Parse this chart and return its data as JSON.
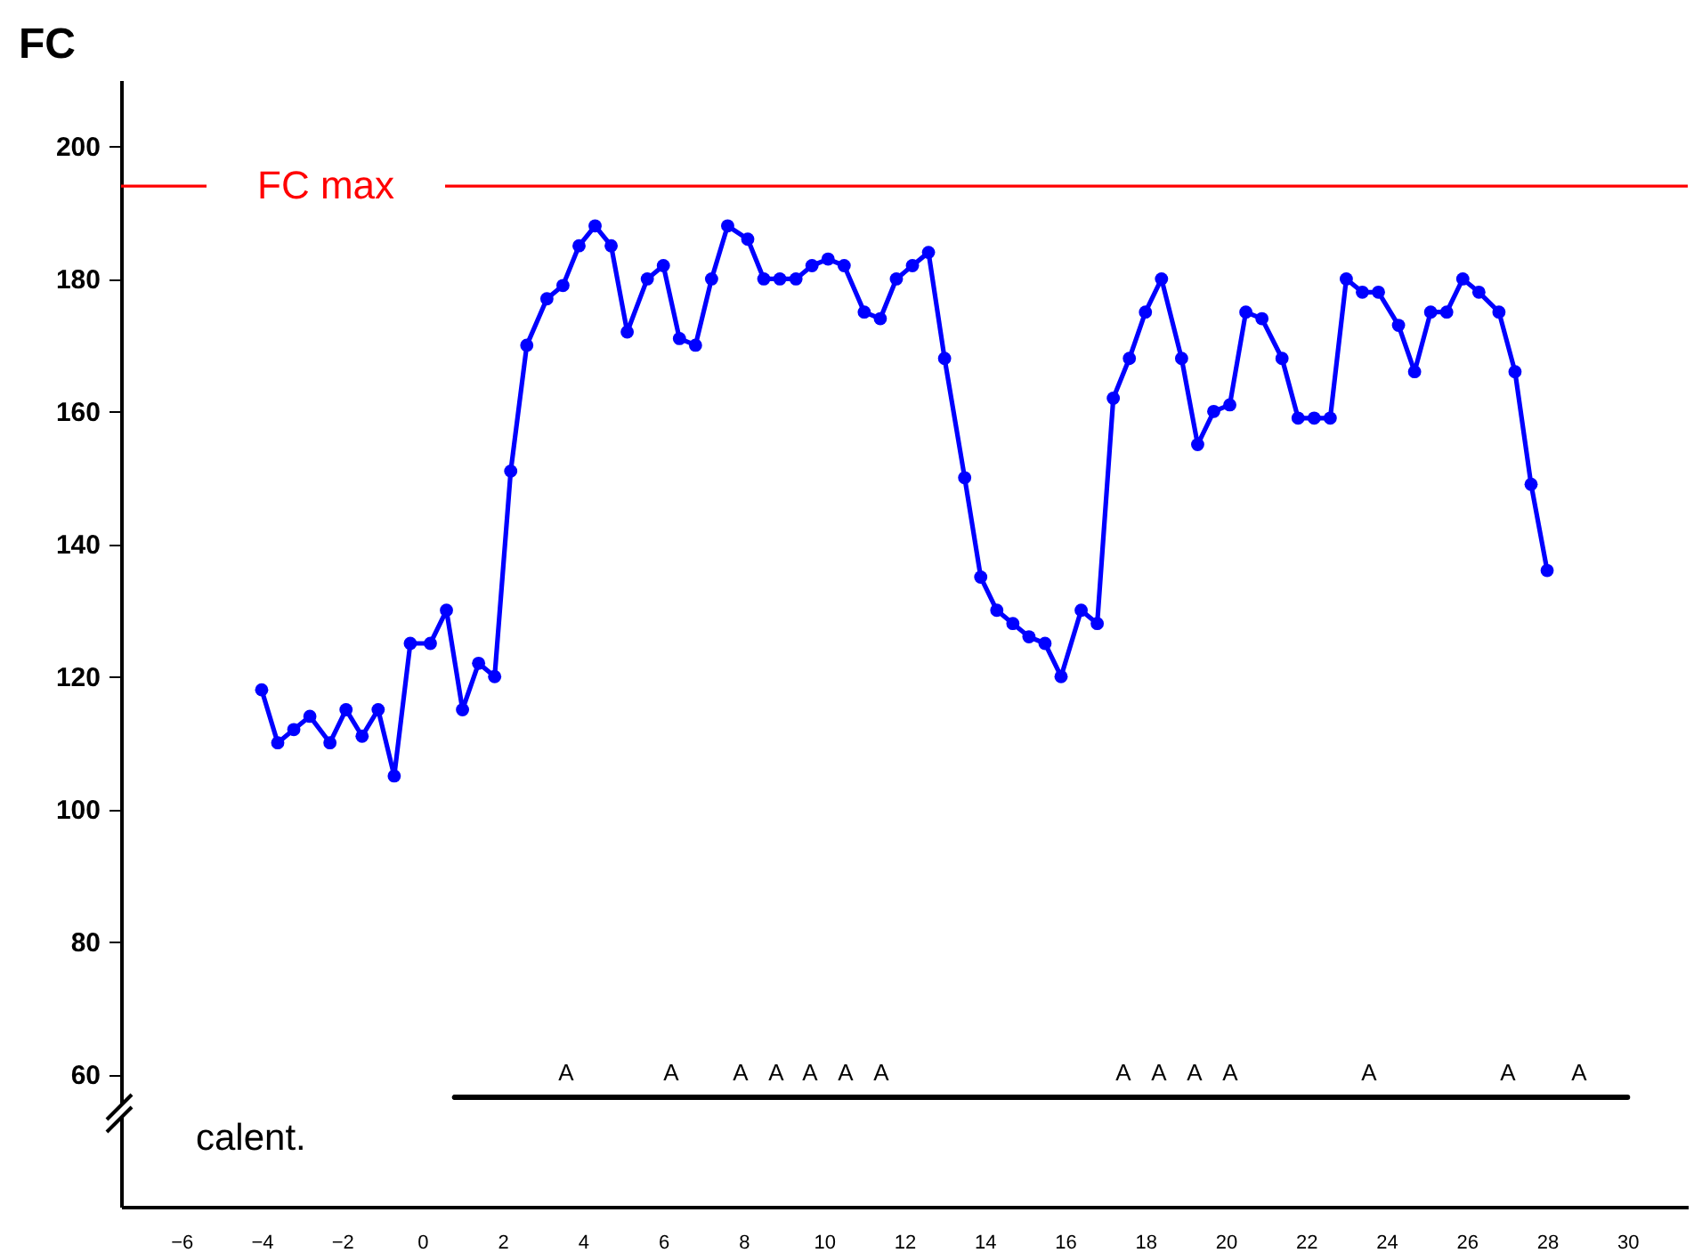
{
  "chart_data": {
    "type": "line",
    "ylabel": "FC",
    "x": [
      -4.0,
      -3.6,
      -3.2,
      -2.8,
      -2.3,
      -1.9,
      -1.5,
      -1.1,
      -0.7,
      -0.3,
      0.2,
      0.6,
      1.0,
      1.4,
      1.8,
      2.2,
      2.6,
      3.1,
      3.5,
      3.9,
      4.3,
      4.7,
      5.1,
      5.6,
      6.0,
      6.4,
      6.8,
      7.2,
      7.6,
      8.1,
      8.5,
      8.9,
      9.3,
      9.7,
      10.1,
      10.5,
      11.0,
      11.4,
      11.8,
      12.2,
      12.6,
      13.0,
      13.5,
      13.9,
      14.3,
      14.7,
      15.1,
      15.5,
      15.9,
      16.4,
      16.8,
      17.2,
      17.6,
      18.0,
      18.4,
      18.9,
      19.3,
      19.7,
      20.1,
      20.5,
      20.9,
      21.4,
      21.8,
      22.2,
      22.6,
      23.0,
      23.4,
      23.8,
      24.3,
      24.7,
      25.1,
      25.5,
      25.9,
      26.3,
      26.8,
      27.2,
      27.6,
      28.0
    ],
    "series": [
      {
        "type": "line",
        "color": "#000000",
        "marker": "none",
        "x": [
          0.8,
          30.0
        ],
        "values": [
          56.5,
          56.5
        ]
      },
      {
        "color": "#0000ff",
        "values": [
          118,
          110,
          112,
          114,
          110,
          115,
          111,
          115,
          105,
          125,
          125,
          130,
          115,
          122,
          120,
          151,
          170,
          177,
          179,
          185,
          188,
          185,
          172,
          180,
          182,
          171,
          170,
          180,
          188,
          186,
          180,
          180,
          180,
          182,
          183,
          182,
          175,
          174,
          180,
          182,
          184,
          168,
          150,
          135,
          130,
          128,
          126,
          125,
          120,
          130,
          128,
          162,
          168,
          175,
          180,
          168,
          155,
          160,
          161,
          175,
          174,
          168,
          159,
          159,
          159,
          180,
          178,
          178,
          173,
          166,
          175,
          175,
          180,
          178,
          175,
          166,
          149,
          136
        ]
      }
    ],
    "xlim": [
      -7.5,
      31.5
    ],
    "ylim": [
      40,
      210
    ],
    "xticks": [
      -6,
      -4,
      -2,
      0,
      2,
      4,
      6,
      8,
      10,
      12,
      14,
      16,
      18,
      20,
      22,
      24,
      26,
      28,
      30
    ],
    "yticks": [
      60,
      80,
      100,
      120,
      140,
      160,
      180,
      200
    ],
    "marker": "circle",
    "line_style": "solid",
    "ref_lines": [
      {
        "axis": "y",
        "value": 194,
        "label": "FC max",
        "color": "#ff0000"
      }
    ],
    "annotations": [
      "calent.",
      "A",
      "A",
      "A",
      "A",
      "A",
      "A",
      "A",
      "A",
      "A",
      "A",
      "A",
      "A",
      "A",
      "A"
    ]
  }
}
